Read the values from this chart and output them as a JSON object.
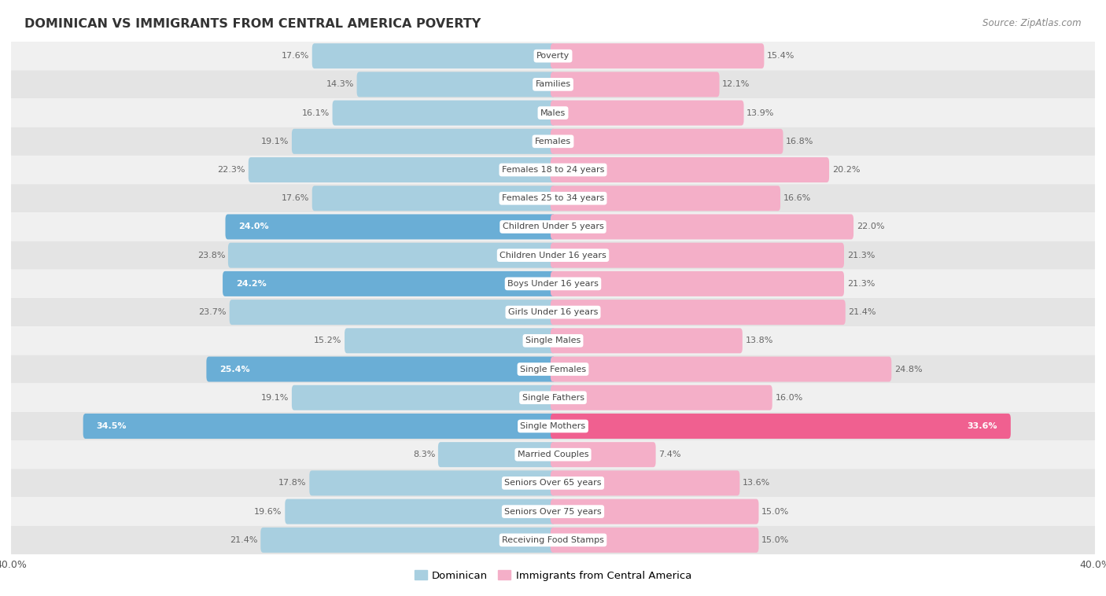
{
  "title": "DOMINICAN VS IMMIGRANTS FROM CENTRAL AMERICA POVERTY",
  "source": "Source: ZipAtlas.com",
  "categories": [
    "Poverty",
    "Families",
    "Males",
    "Females",
    "Females 18 to 24 years",
    "Females 25 to 34 years",
    "Children Under 5 years",
    "Children Under 16 years",
    "Boys Under 16 years",
    "Girls Under 16 years",
    "Single Males",
    "Single Females",
    "Single Fathers",
    "Single Mothers",
    "Married Couples",
    "Seniors Over 65 years",
    "Seniors Over 75 years",
    "Receiving Food Stamps"
  ],
  "dominican": [
    17.6,
    14.3,
    16.1,
    19.1,
    22.3,
    17.6,
    24.0,
    23.8,
    24.2,
    23.7,
    15.2,
    25.4,
    19.1,
    34.5,
    8.3,
    17.8,
    19.6,
    21.4
  ],
  "central_america": [
    15.4,
    12.1,
    13.9,
    16.8,
    20.2,
    16.6,
    22.0,
    21.3,
    21.3,
    21.4,
    13.8,
    24.8,
    16.0,
    33.6,
    7.4,
    13.6,
    15.0,
    15.0
  ],
  "dominican_bold": [
    false,
    false,
    false,
    false,
    false,
    false,
    true,
    false,
    true,
    false,
    false,
    true,
    false,
    true,
    false,
    false,
    false,
    false
  ],
  "central_america_bold": [
    false,
    false,
    false,
    false,
    false,
    false,
    false,
    false,
    false,
    false,
    false,
    false,
    false,
    true,
    false,
    false,
    false,
    false
  ],
  "dominican_color": "#a8cfe0",
  "central_america_color": "#f4afc8",
  "dominican_bold_color": "#6aaed6",
  "central_america_bold_color": "#f06090",
  "text_color_dom": "#7baac8",
  "text_color_ca": "#e87aaa",
  "text_color_dom_bold": "#5a9ec9",
  "text_color_ca_bold": "#e06090",
  "xlim": 40.0,
  "bar_height": 0.52,
  "bg_color_light": "#f0f0f0",
  "bg_color_dark": "#e4e4e4",
  "legend_dominican": "Dominican",
  "legend_central": "Immigrants from Central America",
  "label_box_color": "#ffffff",
  "label_text_color": "#444444"
}
